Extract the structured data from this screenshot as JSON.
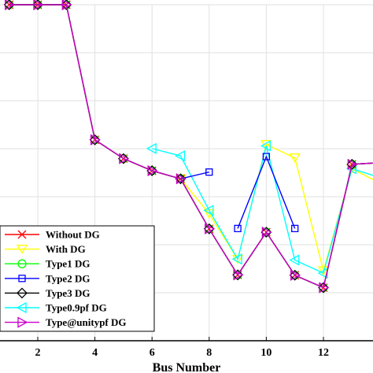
{
  "chart_data": {
    "type": "line",
    "xlabel": "Bus Number",
    "ylabel": "",
    "title": "",
    "xlim": [
      1,
      14
    ],
    "ylim": [
      0.9,
      1.0
    ],
    "x_ticks": [
      2,
      4,
      6,
      8,
      10,
      12
    ],
    "grid": true,
    "legend_position": "bottom-left",
    "series": [
      {
        "name": "Without DG",
        "color": "#ff0000",
        "marker": "x",
        "x": [
          1,
          2,
          3,
          4,
          5,
          6,
          7,
          8,
          9,
          10,
          11,
          12,
          13,
          14
        ],
        "y": [
          1.0,
          1.0,
          1.0,
          0.9598,
          0.9542,
          0.9506,
          0.9482,
          0.9333,
          0.9196,
          0.9323,
          0.9195,
          0.9158,
          0.9525,
          0.953
        ]
      },
      {
        "name": "With DG",
        "color": "#ffff00",
        "marker": "triangle-down",
        "x": [
          7,
          8,
          9,
          10,
          11,
          12,
          13,
          14
        ],
        "y": [
          0.9482,
          0.9378,
          0.9242,
          0.9584,
          0.9544,
          0.9208,
          0.9512,
          0.9468
        ]
      },
      {
        "name": "Type1 DG",
        "color": "#00ff00",
        "marker": "circle",
        "x": [
          1,
          2,
          3,
          4,
          5,
          6,
          7,
          8,
          9,
          10,
          11,
          12,
          13,
          14
        ],
        "y": [
          1.0,
          1.0,
          1.0,
          0.9598,
          0.9542,
          0.9506,
          0.9482,
          0.9333,
          0.9196,
          0.9323,
          0.9195,
          0.9158,
          0.9525,
          0.953
        ]
      },
      {
        "name": "Type2 DG",
        "color": "#0000ff",
        "marker": "square",
        "x": [
          9,
          10,
          11
        ],
        "y": [
          0.9334,
          0.9548,
          0.9334
        ],
        "x2": [
          7,
          8
        ],
        "y2": [
          0.9482,
          0.9502
        ]
      },
      {
        "name": "Type3 DG",
        "color": "#000000",
        "marker": "diamond",
        "x": [
          1,
          2,
          3,
          4,
          5,
          6,
          7,
          8,
          9,
          10,
          11,
          12,
          13,
          14
        ],
        "y": [
          1.0,
          1.0,
          1.0,
          0.9598,
          0.9542,
          0.9506,
          0.9482,
          0.9333,
          0.9196,
          0.9323,
          0.9195,
          0.9158,
          0.9525,
          0.953
        ]
      },
      {
        "name": "Type0.9pf DG",
        "color": "#00ffff",
        "marker": "triangle-left",
        "x": [
          6,
          7,
          8,
          9,
          10,
          11,
          12,
          13,
          14
        ],
        "y": [
          0.9572,
          0.955,
          0.9388,
          0.9243,
          0.958,
          0.924,
          0.9201,
          0.9512,
          0.9485
        ]
      },
      {
        "name": "Type@unitypf DG",
        "color": "#cc00cc",
        "marker": "triangle-right",
        "x": [
          1,
          2,
          3,
          4,
          5,
          6,
          7,
          8,
          9,
          10,
          11,
          12,
          13,
          14
        ],
        "y": [
          1.0,
          1.0,
          1.0,
          0.9598,
          0.9542,
          0.9506,
          0.9482,
          0.9333,
          0.9196,
          0.9323,
          0.9195,
          0.9158,
          0.9525,
          0.953
        ]
      }
    ]
  }
}
